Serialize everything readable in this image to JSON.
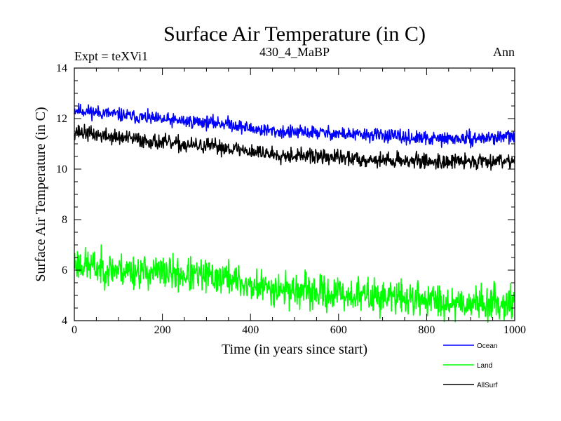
{
  "chart_data": {
    "type": "line",
    "title": "Surface Air Temperature (in C)",
    "subtitle_left": "Expt = teXVi1",
    "subtitle_center": "430_4_MaBP",
    "subtitle_right": "Ann",
    "xlabel": "Time (in years since start)",
    "ylabel": "Surface Air Temperature (in C)",
    "xlim": [
      0,
      1000
    ],
    "ylim": [
      4,
      14
    ],
    "xticks": [
      0,
      200,
      400,
      600,
      800,
      1000
    ],
    "yticks": [
      4,
      6,
      8,
      10,
      12,
      14
    ],
    "x_minor_step": 50,
    "y_minor_step": 0.5,
    "grid": false,
    "legend_position": "bottom-right",
    "series": [
      {
        "name": "Ocean",
        "color": "#0000ff",
        "x_step": 50,
        "trend": [
          12.35,
          12.25,
          12.15,
          12.05,
          11.95,
          11.9,
          11.85,
          11.8,
          11.6,
          11.5,
          11.45,
          11.45,
          11.4,
          11.35,
          11.35,
          11.25,
          11.2,
          11.2,
          11.2,
          11.25,
          11.3
        ],
        "noise_amplitude": 0.22,
        "seed": 11
      },
      {
        "name": "Land",
        "color": "#00ff00",
        "x_step": 50,
        "trend": [
          6.3,
          6.1,
          6.0,
          5.95,
          5.9,
          5.8,
          5.75,
          5.7,
          5.35,
          5.3,
          5.2,
          5.1,
          5.05,
          5.0,
          4.95,
          4.9,
          4.85,
          4.75,
          4.7,
          4.7,
          4.75
        ],
        "noise_amplitude": 0.55,
        "seed": 23
      },
      {
        "name": "AllSurf",
        "color": "#000000",
        "x_step": 50,
        "trend": [
          11.5,
          11.35,
          11.25,
          11.15,
          11.05,
          10.95,
          10.9,
          10.85,
          10.7,
          10.6,
          10.55,
          10.5,
          10.45,
          10.4,
          10.35,
          10.35,
          10.3,
          10.3,
          10.3,
          10.35,
          10.35
        ],
        "noise_amplitude": 0.25,
        "seed": 37
      }
    ]
  }
}
